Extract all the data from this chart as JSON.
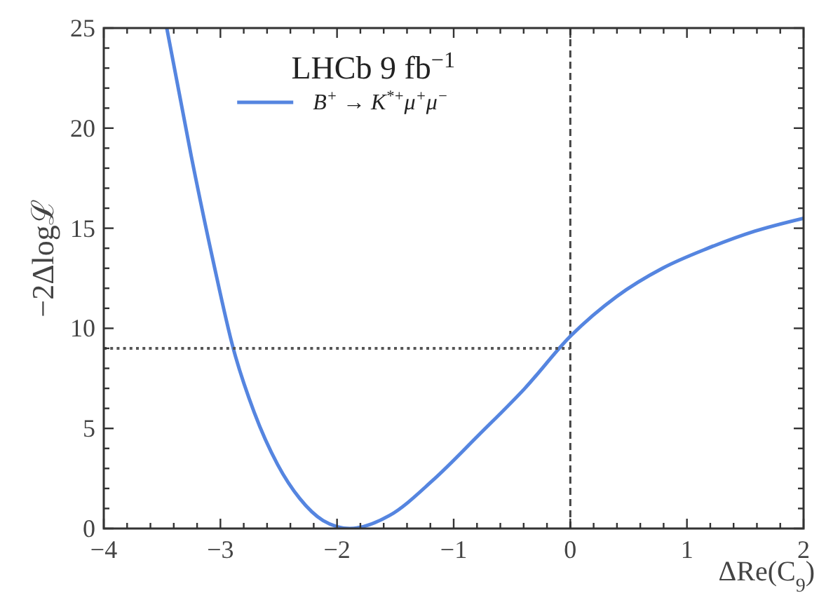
{
  "chart_data": {
    "type": "line",
    "legend_title": "LHCb 9 fb$^{−1}$",
    "xlabel": "ΔRe(C$_{9}$)",
    "ylabel": "−2Δlogℒ",
    "legend": "top",
    "xlim": [
      -4,
      2
    ],
    "xticks": [
      {
        "value": -4,
        "label": "−4"
      },
      {
        "value": -3.8,
        "label": null
      },
      {
        "value": -3.6,
        "label": null
      },
      {
        "value": -3.4,
        "label": null
      },
      {
        "value": -3.2,
        "label": null
      },
      {
        "value": -3,
        "label": "−3"
      },
      {
        "value": -2.8,
        "label": null
      },
      {
        "value": -2.6,
        "label": null
      },
      {
        "value": -2.4,
        "label": null
      },
      {
        "value": -2.2,
        "label": null
      },
      {
        "value": -2,
        "label": "−2"
      },
      {
        "value": -1.8,
        "label": null
      },
      {
        "value": -1.6,
        "label": null
      },
      {
        "value": -1.4,
        "label": null
      },
      {
        "value": -1.2,
        "label": null
      },
      {
        "value": -1,
        "label": "−1"
      },
      {
        "value": -0.8,
        "label": null
      },
      {
        "value": -0.6,
        "label": null
      },
      {
        "value": -0.4,
        "label": null
      },
      {
        "value": -0.2,
        "label": null
      },
      0,
      {
        "value": 0.2,
        "label": null
      },
      {
        "value": 0.4,
        "label": null
      },
      {
        "value": 0.6,
        "label": null
      },
      {
        "value": 0.8,
        "label": null
      },
      1,
      {
        "value": 1.2,
        "label": null
      },
      {
        "value": 1.4,
        "label": null
      },
      {
        "value": 1.6,
        "label": null
      },
      {
        "value": 1.8,
        "label": null
      },
      2
    ],
    "ylim": [
      0,
      25
    ],
    "yticks": [
      0,
      {
        "value": 1,
        "label": null
      },
      {
        "value": 2,
        "label": null
      },
      {
        "value": 3,
        "label": null
      },
      {
        "value": 4,
        "label": null
      },
      5,
      {
        "value": 6,
        "label": null
      },
      {
        "value": 7,
        "label": null
      },
      {
        "value": 8,
        "label": null
      },
      {
        "value": 9,
        "label": null
      },
      10,
      {
        "value": 11,
        "label": null
      },
      {
        "value": 12,
        "label": null
      },
      {
        "value": 13,
        "label": null
      },
      {
        "value": 14,
        "label": null
      },
      15,
      {
        "value": 16,
        "label": null
      },
      {
        "value": 17,
        "label": null
      },
      {
        "value": 18,
        "label": null
      },
      {
        "value": 19,
        "label": null
      },
      20,
      {
        "value": 21,
        "label": null
      },
      {
        "value": 22,
        "label": null
      },
      {
        "value": 23,
        "label": null
      },
      {
        "value": 24,
        "label": null
      },
      25
    ],
    "series": [
      {
        "name": "B$^{+}$ → K$^{*+}$μ$^{+}$μ$^{−}$",
        "color": "#5585e0",
        "x": [
          -3.46,
          -3.25,
          -3.06,
          -2.89,
          -2.71,
          -2.51,
          -2.32,
          -2.12,
          -1.89,
          -1.55,
          -1.18,
          -0.78,
          -0.39,
          0,
          0.4,
          0.79,
          1.18,
          1.58,
          2.0
        ],
        "values": [
          25,
          18.6,
          13.3,
          9.0,
          5.8,
          3.2,
          1.5,
          0.4,
          0.0,
          0.65,
          2.4,
          4.7,
          7.0,
          9.6,
          11.6,
          13.0,
          14.0,
          14.85,
          15.5
        ]
      },
      {
        "color": "#555555",
        "line_style": "dotted",
        "x": [
          -4,
          0
        ],
        "values": [
          9,
          9
        ]
      }
    ],
    "ref_lines": [
      {
        "axis": "x",
        "value": 0,
        "color": "#444444",
        "line_style": "dashed"
      }
    ]
  }
}
